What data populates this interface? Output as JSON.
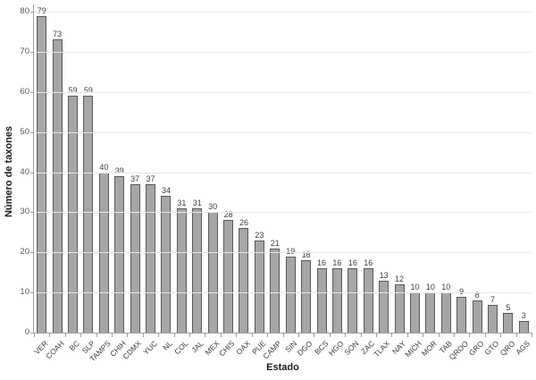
{
  "chart_data": {
    "type": "bar",
    "title": "",
    "xlabel": "Estado",
    "ylabel": "Número de taxones",
    "categories": [
      "VER",
      "COAH",
      "BC",
      "SLP",
      "TAMPS",
      "CHIH",
      "CDMX",
      "YUC",
      "NL",
      "COL",
      "JAL",
      "MEX",
      "CHIS",
      "OAX",
      "PUE",
      "CAMP",
      "SIN",
      "DGO",
      "BCS",
      "HGO",
      "SON",
      "ZAC",
      "TLAX",
      "NAY",
      "MICH",
      "MOR",
      "TAB",
      "QROO",
      "GRO",
      "GTO",
      "QRO",
      "AGS"
    ],
    "values": [
      79,
      73,
      59,
      59,
      40,
      39,
      37,
      37,
      34,
      31,
      31,
      30,
      28,
      26,
      23,
      21,
      19,
      18,
      16,
      16,
      16,
      16,
      13,
      12,
      10,
      10,
      10,
      9,
      8,
      7,
      5,
      3
    ],
    "ylim": [
      0,
      80
    ],
    "ytick_step": 10,
    "grid": true,
    "legend": "none",
    "data_labels": true,
    "colors": {
      "bar_fill": "#a6a6a6",
      "bar_border": "#595959",
      "gridline": "#e9e9e9",
      "axis_line": "#9e9e9e",
      "value_label": "#404040",
      "tick_label": "#595959",
      "axis_title": "#1a1a1a"
    }
  }
}
